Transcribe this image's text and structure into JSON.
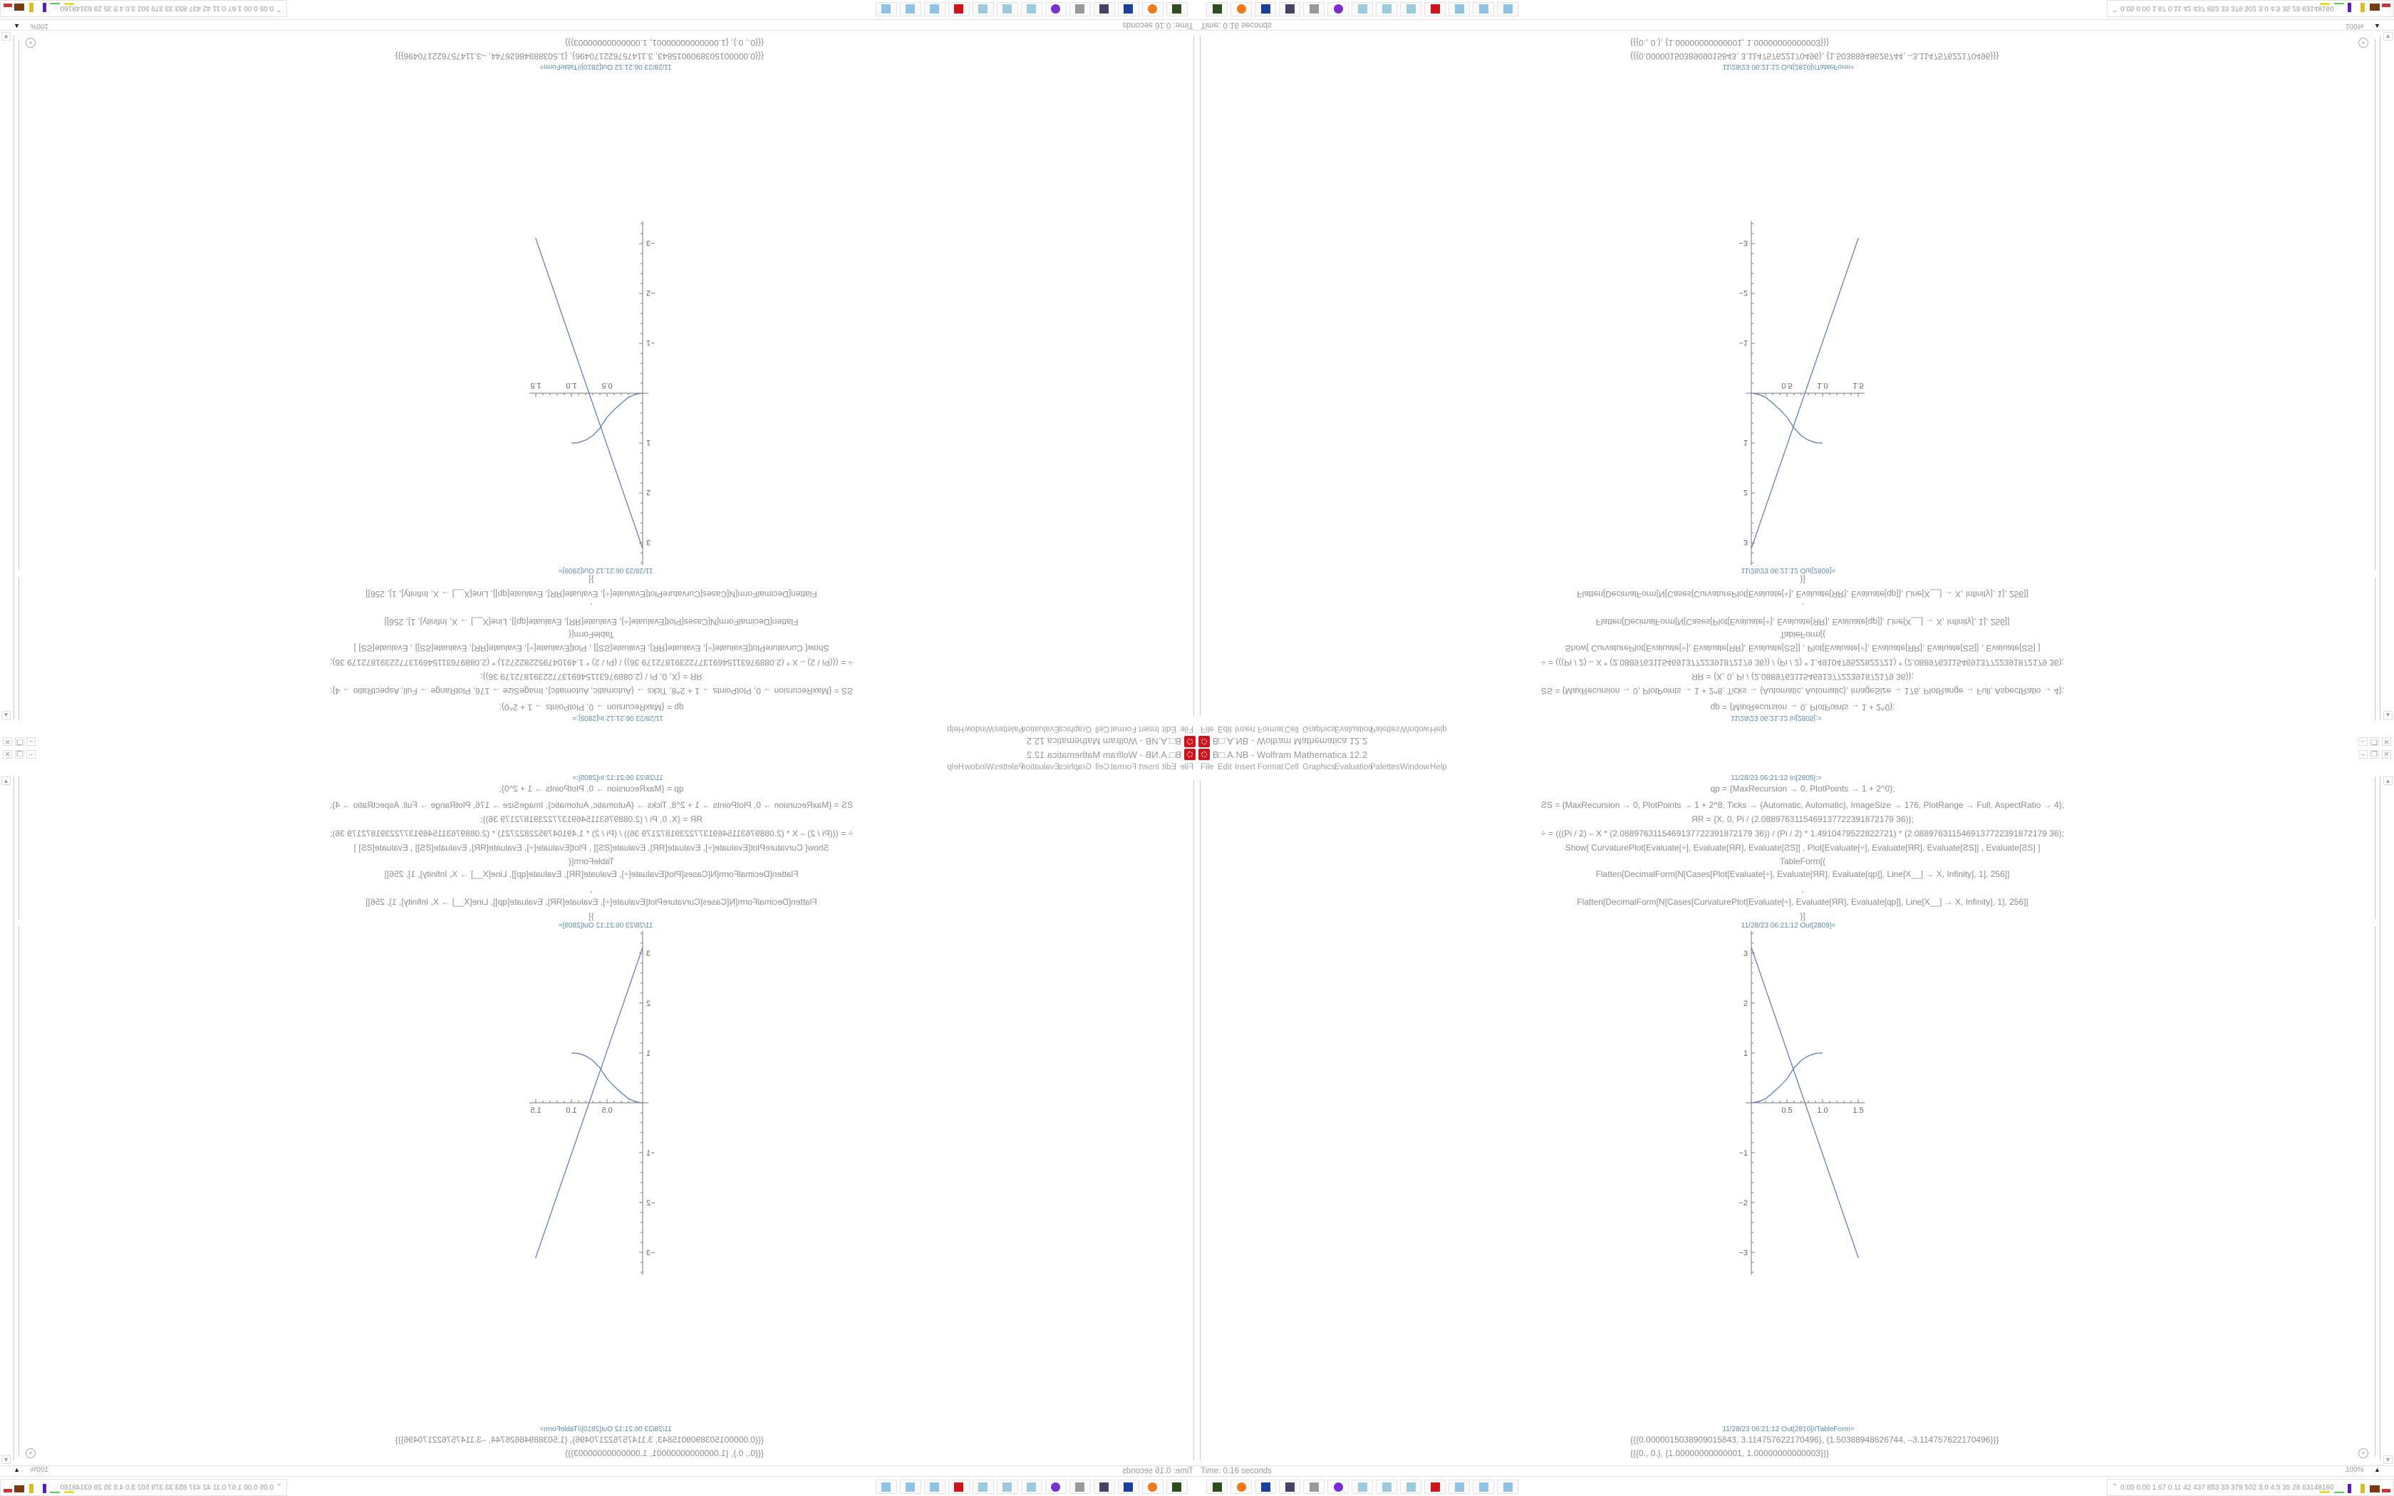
{
  "window": {
    "title": "B□.A.NB - Wolfram Mathematica 12.2",
    "buttons": [
      "minimize",
      "restore",
      "close"
    ]
  },
  "menu": [
    "File",
    "Edit",
    "Insert",
    "Format",
    "Cell",
    "Graphics",
    "Evaluation",
    "Palettes",
    "Window",
    "Help"
  ],
  "notebook": {
    "input_label": "11/28/23 06:21:12 In[2805]:=",
    "code_lines": [
      "qp = {MaxRecursion → 0, PlotPoints → 1 + 2^0};",
      "ƧS = {MaxRecursion → 0, PlotPoints → 1 + 2^8, Ticks → {Automatic, Automatic}, ImageSize → 176, PlotRange → Full, AspectRatio → 4};",
      "ЯR = {X, 0, Pi / (2.0889763115469137722391872179 36)};",
      "÷ = (((Pi / 2) – X * (2.0889763115469137722391872179 36)) / (Pi / 2) * 1.4910479522822721) * (2.0889763115469137722391872179 36);",
      "Show[   CurvaturePlot[Evaluate[÷], Evaluate[ЯR], Evaluate[ƧS]]   ,    Plot[Evaluate[÷], Evaluate[ЯR], Evaluate[ƧS]]   ,    Evaluate[ƧS]   ]",
      "TableForm[{",
      "Flatten[DecimalForm[N[Cases[Plot[Evaluate[÷], Evaluate[ЯR], Evaluate[qp]], Line[X__] → X, Infinity], 1], 256]]",
      ",",
      "Flatten[DecimalForm[N[Cases[CurvaturePlot[Evaluate[÷], Evaluate[ЯR], Evaluate[qp]], Line[X__] → X, Infinity], 1], 256]]",
      "}]"
    ],
    "plot_label": "11/28/23 06:21:12 Out[2809]=",
    "table_label": "11/28/23 06:21:12 Out[2810]//TableForm=",
    "table_lines": [
      "{{{0.0000015038909015843, 3.114757622170496}, {1.50388948626744, –3.114757622170496}}}",
      "{{{0., 0.}, {1.00000000000001, 1.00000000000003}}}"
    ]
  },
  "status": {
    "time": "Time: 0.16 seconds",
    "zoom": "100%"
  },
  "taskbar": {
    "icons": [
      "terminal-icon",
      "firefox-icon",
      "floppy-64-icon",
      "monitor-icon",
      "speaker-icon",
      "purple-app-icon",
      "notepad-icon",
      "notepad-icon",
      "notepad-icon",
      "mathematica-icon",
      "calculator-icon",
      "calculator-icon",
      "calculator-icon"
    ],
    "system_stats": "0.05 0.00 1.67 0.11  42  437  853  33  379  502  3.0  4.5  35  28  63148160"
  },
  "colors": {
    "plot_line": "#5e81b5",
    "label": "#5a8bb0",
    "mathematica_red": "#d0141a"
  },
  "chart_data": {
    "type": "line",
    "title": "",
    "xlabel": "",
    "ylabel": "",
    "xlim": [
      0,
      1.55
    ],
    "ylim": [
      -3.45,
      3.45
    ],
    "xticks": [
      "0.5",
      "1.0",
      "1.5"
    ],
    "yticks": [
      "-3",
      "-2",
      "-1",
      "1",
      "2",
      "3"
    ],
    "grid": false,
    "series": [
      {
        "x": [
          1.5038909015843e-06,
          1.50388948626744
        ],
        "y": [
          3.114757622170496,
          -3.114757622170496
        ]
      },
      {
        "x": [
          0,
          0.1,
          0.2,
          0.3,
          0.4,
          0.5,
          0.6,
          0.7,
          0.8,
          0.9,
          1.0
        ],
        "y": [
          0,
          0.02,
          0.08,
          0.2,
          0.33,
          0.48,
          0.7,
          0.85,
          0.94,
          0.99,
          1.0
        ]
      }
    ]
  }
}
